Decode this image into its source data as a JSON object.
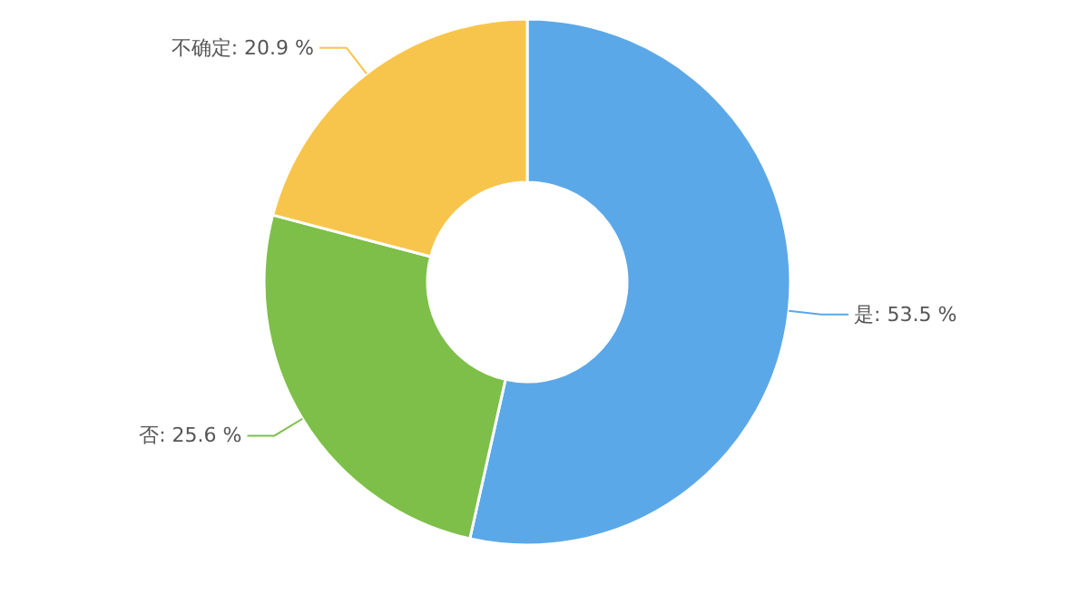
{
  "chart_data": {
    "type": "donut",
    "categories": [
      "是",
      "否",
      "不确定"
    ],
    "values": [
      53.5,
      25.6,
      20.9
    ],
    "colors": [
      "#5ba8e8",
      "#7dbf48",
      "#f8c54c"
    ],
    "value_labels": [
      "53.5 %",
      "25.6 %",
      "20.9 %"
    ]
  }
}
